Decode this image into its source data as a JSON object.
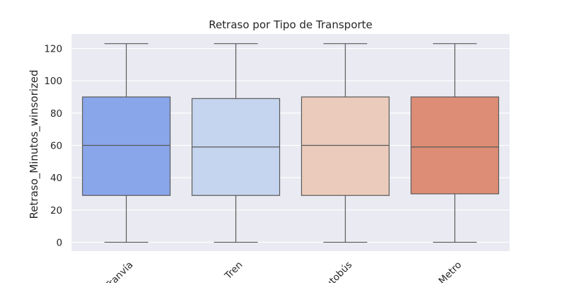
{
  "chart_data": {
    "type": "box",
    "title": "Retraso por Tipo de Transporte",
    "xlabel": "",
    "ylabel": "Retraso_Minutos_winsorized",
    "ylim": [
      -5.5,
      129
    ],
    "yticks": [
      0,
      20,
      40,
      60,
      80,
      100,
      120
    ],
    "grid": true,
    "categories": [
      "Tranvía",
      "Tren",
      "Autobús",
      "Metro"
    ],
    "colors": [
      "#8aa6ea",
      "#c5d5ef",
      "#ebcbbb",
      "#dd8d75"
    ],
    "boxes": [
      {
        "min": 0,
        "q1": 29,
        "median": 60,
        "q3": 90,
        "max": 123
      },
      {
        "min": 0,
        "q1": 29,
        "median": 59,
        "q3": 89,
        "max": 123
      },
      {
        "min": 0,
        "q1": 29,
        "median": 60,
        "q3": 90,
        "max": 123
      },
      {
        "min": 0,
        "q1": 30,
        "median": 59,
        "q3": 90,
        "max": 123
      }
    ]
  }
}
